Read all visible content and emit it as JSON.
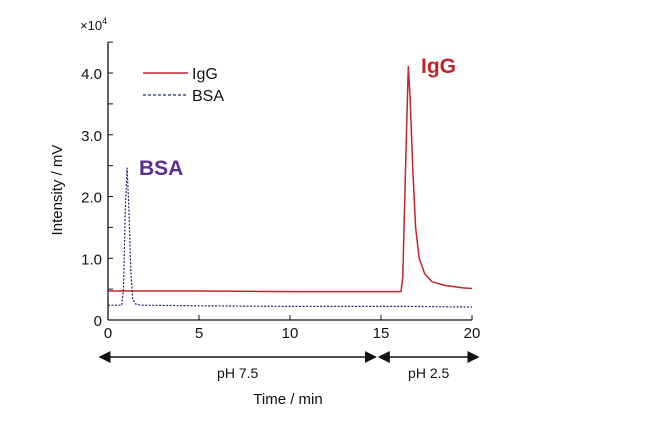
{
  "chart_data": {
    "type": "line",
    "xlabel": "Time / min",
    "ylabel": "Intensity / mV",
    "y_multiplier": "×10",
    "y_multiplier_exp": "4",
    "xlim": [
      0,
      20
    ],
    "ylim": [
      0,
      4.5
    ],
    "xticks": [
      0,
      5,
      10,
      15,
      20
    ],
    "xtick_labels": [
      "0",
      "5",
      "10",
      "15",
      "20"
    ],
    "yticks": [
      0,
      1.0,
      2.0,
      3.0,
      4.0
    ],
    "ytick_labels": [
      "0",
      "1.0",
      "2.0",
      "3.0",
      "4.0"
    ],
    "grid": false,
    "legend": {
      "placement": "top-left",
      "entries": [
        "IgG",
        "BSA"
      ]
    },
    "colors": {
      "IgG": "#c0252e",
      "BSA": "#1c2a6e",
      "BSA_annotation": "#5a2d91"
    },
    "series": [
      {
        "name": "IgG",
        "style": "solid",
        "x": [
          0,
          5,
          10,
          14,
          16.1,
          16.2,
          16.35,
          16.5,
          16.6,
          16.75,
          16.9,
          17.1,
          17.4,
          17.8,
          18.5,
          19.5,
          20
        ],
        "y": [
          0.47,
          0.47,
          0.46,
          0.46,
          0.46,
          0.7,
          2.5,
          4.1,
          3.6,
          2.4,
          1.5,
          1.0,
          0.75,
          0.62,
          0.56,
          0.52,
          0.51
        ]
      },
      {
        "name": "BSA",
        "style": "dashed",
        "x": [
          0,
          0.75,
          0.85,
          0.95,
          1.05,
          1.15,
          1.25,
          1.35,
          1.5,
          1.8,
          5,
          10,
          15,
          16.5,
          20
        ],
        "y": [
          0.24,
          0.24,
          0.5,
          1.8,
          2.46,
          1.8,
          0.8,
          0.35,
          0.26,
          0.24,
          0.23,
          0.22,
          0.22,
          0.22,
          0.21
        ]
      }
    ],
    "annotations": [
      {
        "text": "IgG",
        "x": 17.2,
        "y": 4.2
      },
      {
        "text": "BSA",
        "x": 1.7,
        "y": 2.3
      }
    ],
    "ranges": [
      {
        "label": "pH 7.5",
        "from": 0,
        "to": 14.8
      },
      {
        "label": "pH 2.5",
        "from": 14.8,
        "to": 20
      }
    ]
  }
}
